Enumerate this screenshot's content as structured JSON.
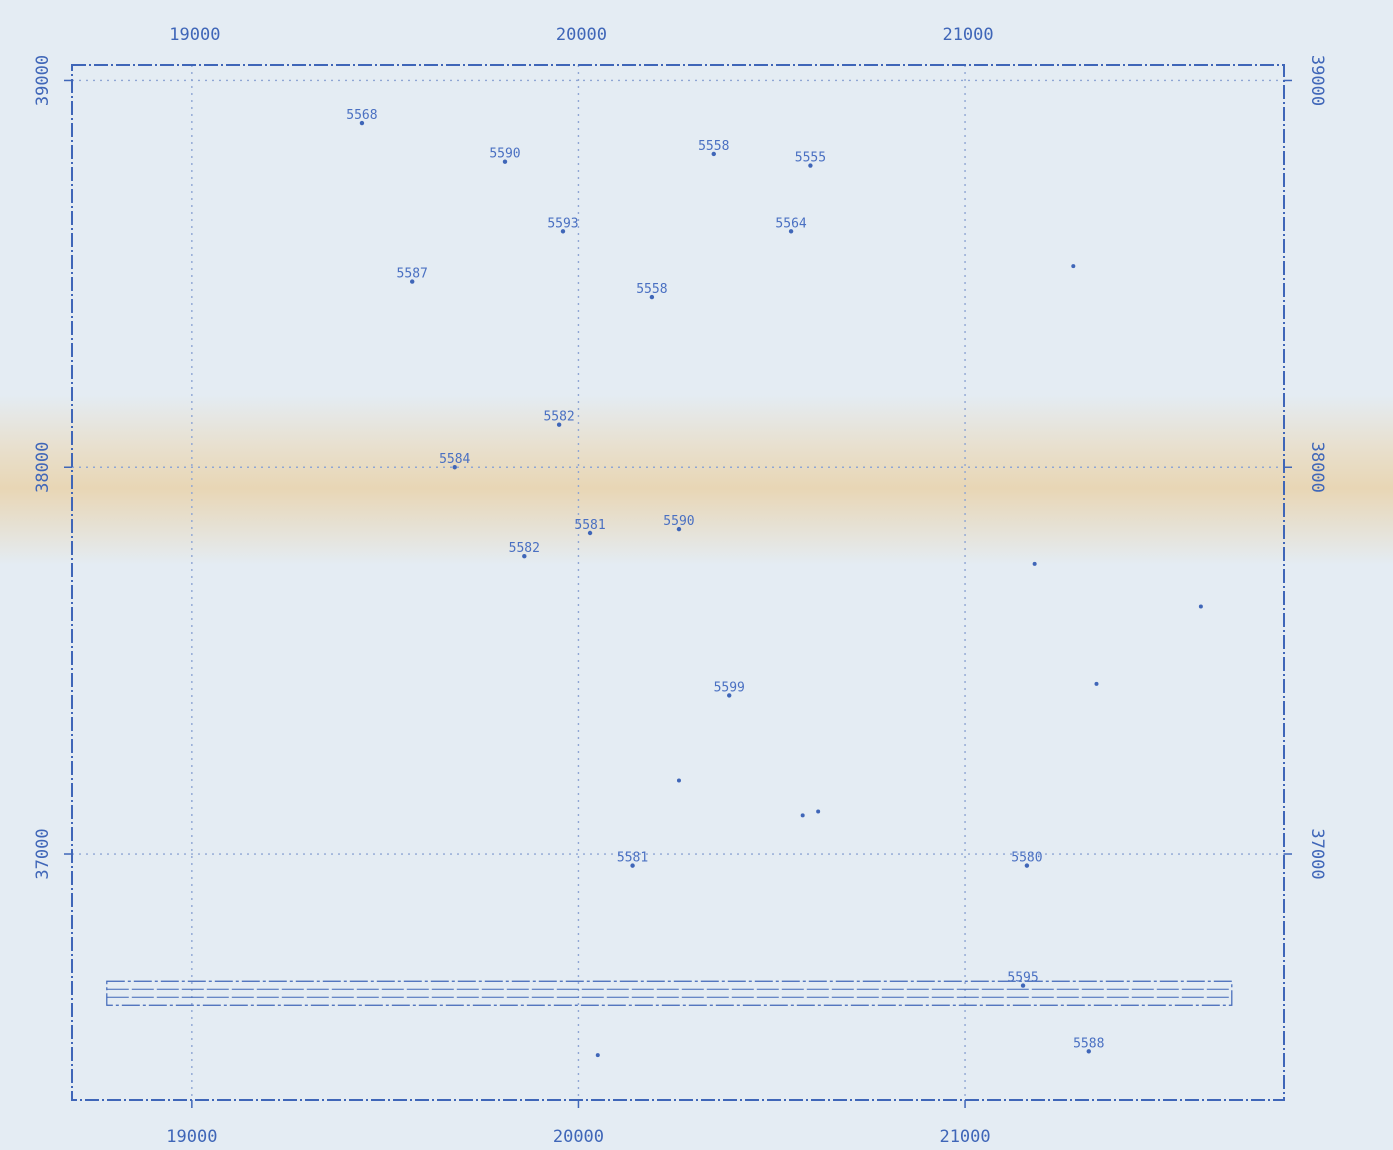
{
  "colors": {
    "paper": "#e4ecf3",
    "ink": "#3f66b8",
    "grid": "#8fa6d4",
    "stain": "#e8c48c"
  },
  "chart_data": {
    "type": "scatter",
    "title": "",
    "xlabel": "",
    "ylabel": "",
    "xlim": [
      18690,
      21825
    ],
    "ylim": [
      36364,
      39040
    ],
    "grid": true,
    "x_ticks": [
      19000,
      20000,
      21000
    ],
    "x_tick_labels": [
      "19000",
      "20000",
      "21000"
    ],
    "y_ticks": [
      37000,
      38000,
      39000
    ],
    "y_tick_labels": [
      "37000",
      "38000",
      "39000"
    ],
    "top_tick_labels": [
      "19000",
      "20000",
      "21000"
    ],
    "right_tick_labels": [
      "37000",
      "38000",
      "39000"
    ],
    "labeled_points": [
      {
        "label": "5568",
        "x": 19440,
        "y": 38890
      },
      {
        "label": "5590",
        "x": 19810,
        "y": 38790
      },
      {
        "label": "5558",
        "x": 20350,
        "y": 38810
      },
      {
        "label": "5555",
        "x": 20600,
        "y": 38780
      },
      {
        "label": "5593",
        "x": 19960,
        "y": 38610
      },
      {
        "label": "5564",
        "x": 20550,
        "y": 38610
      },
      {
        "label": "5587",
        "x": 19570,
        "y": 38480
      },
      {
        "label": "5558",
        "x": 20190,
        "y": 38440
      },
      {
        "label": "5582",
        "x": 19950,
        "y": 38110
      },
      {
        "label": "5584",
        "x": 19680,
        "y": 38000
      },
      {
        "label": "5581",
        "x": 20030,
        "y": 37830
      },
      {
        "label": "5590",
        "x": 20260,
        "y": 37840
      },
      {
        "label": "5582",
        "x": 19860,
        "y": 37770
      },
      {
        "label": "5599",
        "x": 20390,
        "y": 37410
      },
      {
        "label": "5581",
        "x": 20140,
        "y": 36970
      },
      {
        "label": "5580",
        "x": 21160,
        "y": 36970
      },
      {
        "label": "5595",
        "x": 21150,
        "y": 36660
      },
      {
        "label": "5588",
        "x": 21320,
        "y": 36490
      }
    ],
    "unlabeled_points": [
      {
        "x": 21280,
        "y": 38520
      },
      {
        "x": 21180,
        "y": 37750
      },
      {
        "x": 21610,
        "y": 37640
      },
      {
        "x": 21340,
        "y": 37440
      },
      {
        "x": 20260,
        "y": 37190
      },
      {
        "x": 20580,
        "y": 37100
      },
      {
        "x": 20620,
        "y": 37110
      },
      {
        "x": 20050,
        "y": 36480
      }
    ],
    "band": {
      "x_start": 18780,
      "x_end": 21690,
      "y_center": 36640
    }
  }
}
